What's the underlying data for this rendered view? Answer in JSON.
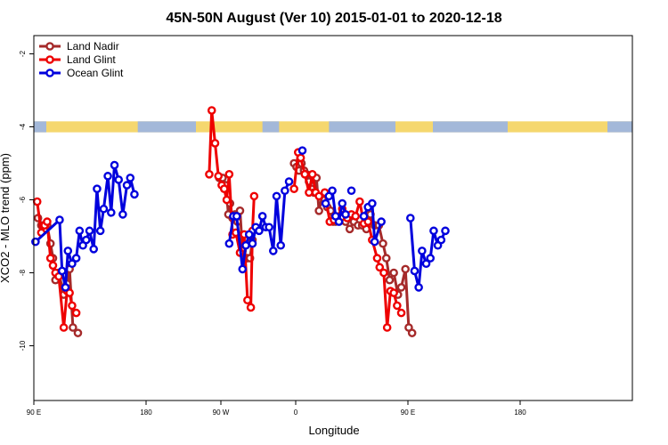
{
  "chart_data": {
    "type": "line",
    "title": "45N-50N August (Ver 10)   2015-01-01 to 2020-12-18",
    "xlabel": "Longitude",
    "ylabel": "XCO2 - MLO trend (ppm)",
    "xlim": [
      -135,
      585
    ],
    "ylim": [
      -11.5,
      -1.5
    ],
    "x_ticks": [
      {
        "value": -135,
        "label": "90 E"
      },
      {
        "value": 0,
        "label": "180"
      },
      {
        "value": 90,
        "label": "90 W"
      },
      {
        "value": 180,
        "label": "0"
      },
      {
        "value": 315,
        "label": "90 E"
      },
      {
        "value": 450,
        "label": "180"
      }
    ],
    "y_ticks": [
      {
        "value": -2,
        "label": "-2"
      },
      {
        "value": -4,
        "label": "-4"
      },
      {
        "value": -6,
        "label": "-6"
      },
      {
        "value": -8,
        "label": "-8"
      },
      {
        "value": -10,
        "label": "-10"
      }
    ],
    "land_band": {
      "y_top": -3.85,
      "y_bottom": -4.15,
      "land_color": "#f5d76e",
      "ocean_color": "#a3b8d9"
    },
    "legend_position": "top-left",
    "series": [
      {
        "name": "Land Nadir",
        "color": "#a52a2a",
        "segments": [
          [
            [
              -130,
              -6.5
            ],
            [
              -126,
              -6.7
            ],
            [
              -122,
              -6.8
            ],
            [
              -119,
              -6.7
            ],
            [
              -115,
              -7.2
            ],
            [
              -112,
              -7.6
            ],
            [
              -109,
              -8.2
            ],
            [
              -105,
              -8.0
            ],
            [
              -99,
              -8.6
            ],
            [
              -95,
              -8.3
            ],
            [
              -92,
              -7.9
            ],
            [
              -88,
              -9.5
            ],
            [
              -82,
              -9.65
            ]
          ],
          [
            [
              88,
              -5.4
            ],
            [
              92,
              -5.4
            ],
            [
              96,
              -5.6
            ],
            [
              99,
              -6.4
            ],
            [
              101,
              -6.1
            ],
            [
              104,
              -6.5
            ],
            [
              107,
              -6.4
            ],
            [
              110,
              -6.6
            ],
            [
              113,
              -6.3
            ],
            [
              116,
              -7.4
            ],
            [
              119,
              -7.6
            ],
            [
              122,
              -7.6
            ],
            [
              125,
              -7.6
            ],
            [
              128,
              -7.1
            ],
            [
              131,
              -6.8
            ],
            [
              134,
              -6.8
            ]
          ],
          [
            [
              178,
              -5.0
            ],
            [
              181,
              -5.1
            ],
            [
              184,
              -5.2
            ],
            [
              187,
              -5.0
            ],
            [
              190,
              -5.2
            ],
            [
              193,
              -5.3
            ],
            [
              196,
              -5.5
            ],
            [
              199,
              -5.7
            ],
            [
              202,
              -5.8
            ],
            [
              205,
              -5.4
            ],
            [
              208,
              -6.3
            ],
            [
              212,
              -5.9
            ],
            [
              215,
              -6.0
            ],
            [
              218,
              -6.2
            ],
            [
              222,
              -6.3
            ],
            [
              225,
              -6.6
            ],
            [
              228,
              -6.6
            ],
            [
              235,
              -6.5
            ],
            [
              240,
              -6.6
            ],
            [
              245,
              -6.8
            ],
            [
              250,
              -6.6
            ],
            [
              255,
              -6.7
            ],
            [
              260,
              -6.7
            ],
            [
              265,
              -6.8
            ],
            [
              270,
              -6.4
            ],
            [
              275,
              -6.7
            ],
            [
              280,
              -6.7
            ],
            [
              285,
              -7.2
            ],
            [
              289,
              -7.6
            ],
            [
              293,
              -8.2
            ],
            [
              298,
              -8.0
            ],
            [
              303,
              -8.6
            ],
            [
              307,
              -8.4
            ],
            [
              312,
              -7.9
            ],
            [
              316,
              -9.5
            ],
            [
              320,
              -9.65
            ]
          ]
        ]
      },
      {
        "name": "Land Glint",
        "color": "#ee0000",
        "segments": [
          [
            [
              -131,
              -6.05
            ],
            [
              -126,
              -6.9
            ],
            [
              -122,
              -6.7
            ],
            [
              -119,
              -6.6
            ],
            [
              -115,
              -7.6
            ],
            [
              -112,
              -7.8
            ],
            [
              -109,
              -8.0
            ],
            [
              -105,
              -8.1
            ],
            [
              -99,
              -9.5
            ],
            [
              -95,
              -8.5
            ],
            [
              -92,
              -8.55
            ],
            [
              -89,
              -8.9
            ],
            [
              -84,
              -9.1
            ]
          ],
          [
            [
              76,
              -5.3
            ],
            [
              79,
              -3.55
            ],
            [
              83,
              -4.45
            ],
            [
              87,
              -5.35
            ],
            [
              91,
              -5.6
            ],
            [
              94,
              -5.7
            ],
            [
              97,
              -6.0
            ],
            [
              100,
              -5.3
            ],
            [
              104,
              -6.95
            ],
            [
              108,
              -6.9
            ],
            [
              113,
              -7.45
            ],
            [
              118,
              -6.95
            ],
            [
              122,
              -8.75
            ],
            [
              126,
              -8.95
            ],
            [
              128,
              -6.85
            ],
            [
              130,
              -5.9
            ]
          ],
          [
            [
              178,
              -5.7
            ],
            [
              183,
              -4.7
            ],
            [
              186,
              -4.85
            ],
            [
              191,
              -5.3
            ],
            [
              196,
              -5.8
            ],
            [
              200,
              -5.3
            ],
            [
              204,
              -5.8
            ],
            [
              208,
              -5.9
            ],
            [
              215,
              -5.8
            ],
            [
              221,
              -6.6
            ],
            [
              226,
              -6.55
            ],
            [
              236,
              -6.25
            ],
            [
              242,
              -6.5
            ],
            [
              247,
              -6.4
            ],
            [
              252,
              -6.45
            ],
            [
              257,
              -6.05
            ],
            [
              262,
              -6.65
            ],
            [
              267,
              -6.6
            ],
            [
              272,
              -7.1
            ],
            [
              278,
              -7.6
            ],
            [
              281,
              -7.85
            ],
            [
              286,
              -8.0
            ],
            [
              290,
              -9.5
            ],
            [
              294,
              -8.5
            ],
            [
              298,
              -8.55
            ],
            [
              302,
              -8.9
            ],
            [
              307,
              -9.1
            ]
          ]
        ]
      },
      {
        "name": "Ocean Glint",
        "color": "#0000dd",
        "segments": [
          [
            [
              -133,
              -7.15
            ],
            [
              -104,
              -6.55
            ],
            [
              -101,
              -7.95
            ],
            [
              -97,
              -8.4
            ],
            [
              -94,
              -7.4
            ],
            [
              -89,
              -7.75
            ],
            [
              -84,
              -7.6
            ],
            [
              -80,
              -6.85
            ],
            [
              -76,
              -7.25
            ],
            [
              -72,
              -7.1
            ],
            [
              -68,
              -6.85
            ],
            [
              -63,
              -7.35
            ],
            [
              -59,
              -5.7
            ],
            [
              -55,
              -6.85
            ],
            [
              -51,
              -6.25
            ],
            [
              -46,
              -5.35
            ],
            [
              -42,
              -6.35
            ],
            [
              -38,
              -5.05
            ],
            [
              -33,
              -5.45
            ],
            [
              -28,
              -6.4
            ],
            [
              -23,
              -5.6
            ],
            [
              -19,
              -5.4
            ],
            [
              -14,
              -5.85
            ]
          ],
          [
            [
              100,
              -7.2
            ],
            [
              105,
              -6.45
            ],
            [
              109,
              -6.45
            ],
            [
              116,
              -7.9
            ],
            [
              120,
              -7.25
            ],
            [
              124,
              -6.95
            ],
            [
              128,
              -7.2
            ],
            [
              132,
              -6.75
            ],
            [
              136,
              -6.85
            ],
            [
              140,
              -6.45
            ],
            [
              144,
              -6.75
            ],
            [
              148,
              -6.75
            ],
            [
              153,
              -7.4
            ],
            [
              157,
              -5.9
            ],
            [
              162,
              -7.25
            ],
            [
              167,
              -5.75
            ],
            [
              172,
              -5.5
            ]
          ],
          [
            [
              188,
              -4.65
            ]
          ],
          [
            [
              216,
              -6.1
            ],
            [
              220,
              -5.9
            ],
            [
              224,
              -5.75
            ],
            [
              228,
              -6.45
            ],
            [
              232,
              -6.6
            ],
            [
              236,
              -6.1
            ],
            [
              240,
              -6.4
            ]
          ],
          [
            [
              247,
              -5.75
            ]
          ],
          [
            [
              262,
              -6.45
            ],
            [
              267,
              -6.2
            ],
            [
              272,
              -6.1
            ],
            [
              275,
              -7.15
            ],
            [
              283,
              -6.6
            ]
          ],
          [
            [
              318,
              -6.5
            ],
            [
              323,
              -7.95
            ],
            [
              328,
              -8.4
            ],
            [
              332,
              -7.4
            ],
            [
              337,
              -7.75
            ],
            [
              342,
              -7.6
            ],
            [
              346,
              -6.85
            ],
            [
              351,
              -7.25
            ],
            [
              355,
              -7.1
            ],
            [
              360,
              -6.85
            ]
          ]
        ]
      }
    ]
  }
}
